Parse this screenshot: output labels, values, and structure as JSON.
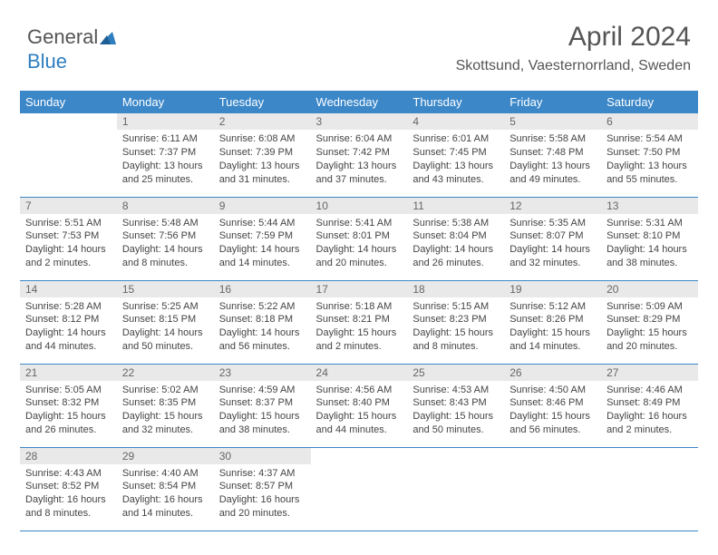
{
  "logo": {
    "part1": "General",
    "part2": "Blue"
  },
  "header": {
    "title": "April 2024",
    "location": "Skottsund, Vaesternorrland, Sweden"
  },
  "colors": {
    "header_bg": "#3b87c8",
    "header_text": "#ffffff",
    "daynum_bg": "#e9e9e9",
    "daynum_text": "#666666",
    "body_text": "#444444",
    "row_border": "#3b87c8",
    "page_bg": "#ffffff",
    "logo_gray": "#555555",
    "logo_blue": "#2f7fbf"
  },
  "typography": {
    "title_fontsize": 30,
    "subtitle_fontsize": 16,
    "dayheader_fontsize": 13,
    "daynum_fontsize": 12,
    "cell_fontsize": 11,
    "font_family": "Arial"
  },
  "day_headers": [
    "Sunday",
    "Monday",
    "Tuesday",
    "Wednesday",
    "Thursday",
    "Friday",
    "Saturday"
  ],
  "weeks": [
    [
      null,
      {
        "n": "1",
        "sunrise": "Sunrise: 6:11 AM",
        "sunset": "Sunset: 7:37 PM",
        "daylight": "Daylight: 13 hours and 25 minutes."
      },
      {
        "n": "2",
        "sunrise": "Sunrise: 6:08 AM",
        "sunset": "Sunset: 7:39 PM",
        "daylight": "Daylight: 13 hours and 31 minutes."
      },
      {
        "n": "3",
        "sunrise": "Sunrise: 6:04 AM",
        "sunset": "Sunset: 7:42 PM",
        "daylight": "Daylight: 13 hours and 37 minutes."
      },
      {
        "n": "4",
        "sunrise": "Sunrise: 6:01 AM",
        "sunset": "Sunset: 7:45 PM",
        "daylight": "Daylight: 13 hours and 43 minutes."
      },
      {
        "n": "5",
        "sunrise": "Sunrise: 5:58 AM",
        "sunset": "Sunset: 7:48 PM",
        "daylight": "Daylight: 13 hours and 49 minutes."
      },
      {
        "n": "6",
        "sunrise": "Sunrise: 5:54 AM",
        "sunset": "Sunset: 7:50 PM",
        "daylight": "Daylight: 13 hours and 55 minutes."
      }
    ],
    [
      {
        "n": "7",
        "sunrise": "Sunrise: 5:51 AM",
        "sunset": "Sunset: 7:53 PM",
        "daylight": "Daylight: 14 hours and 2 minutes."
      },
      {
        "n": "8",
        "sunrise": "Sunrise: 5:48 AM",
        "sunset": "Sunset: 7:56 PM",
        "daylight": "Daylight: 14 hours and 8 minutes."
      },
      {
        "n": "9",
        "sunrise": "Sunrise: 5:44 AM",
        "sunset": "Sunset: 7:59 PM",
        "daylight": "Daylight: 14 hours and 14 minutes."
      },
      {
        "n": "10",
        "sunrise": "Sunrise: 5:41 AM",
        "sunset": "Sunset: 8:01 PM",
        "daylight": "Daylight: 14 hours and 20 minutes."
      },
      {
        "n": "11",
        "sunrise": "Sunrise: 5:38 AM",
        "sunset": "Sunset: 8:04 PM",
        "daylight": "Daylight: 14 hours and 26 minutes."
      },
      {
        "n": "12",
        "sunrise": "Sunrise: 5:35 AM",
        "sunset": "Sunset: 8:07 PM",
        "daylight": "Daylight: 14 hours and 32 minutes."
      },
      {
        "n": "13",
        "sunrise": "Sunrise: 5:31 AM",
        "sunset": "Sunset: 8:10 PM",
        "daylight": "Daylight: 14 hours and 38 minutes."
      }
    ],
    [
      {
        "n": "14",
        "sunrise": "Sunrise: 5:28 AM",
        "sunset": "Sunset: 8:12 PM",
        "daylight": "Daylight: 14 hours and 44 minutes."
      },
      {
        "n": "15",
        "sunrise": "Sunrise: 5:25 AM",
        "sunset": "Sunset: 8:15 PM",
        "daylight": "Daylight: 14 hours and 50 minutes."
      },
      {
        "n": "16",
        "sunrise": "Sunrise: 5:22 AM",
        "sunset": "Sunset: 8:18 PM",
        "daylight": "Daylight: 14 hours and 56 minutes."
      },
      {
        "n": "17",
        "sunrise": "Sunrise: 5:18 AM",
        "sunset": "Sunset: 8:21 PM",
        "daylight": "Daylight: 15 hours and 2 minutes."
      },
      {
        "n": "18",
        "sunrise": "Sunrise: 5:15 AM",
        "sunset": "Sunset: 8:23 PM",
        "daylight": "Daylight: 15 hours and 8 minutes."
      },
      {
        "n": "19",
        "sunrise": "Sunrise: 5:12 AM",
        "sunset": "Sunset: 8:26 PM",
        "daylight": "Daylight: 15 hours and 14 minutes."
      },
      {
        "n": "20",
        "sunrise": "Sunrise: 5:09 AM",
        "sunset": "Sunset: 8:29 PM",
        "daylight": "Daylight: 15 hours and 20 minutes."
      }
    ],
    [
      {
        "n": "21",
        "sunrise": "Sunrise: 5:05 AM",
        "sunset": "Sunset: 8:32 PM",
        "daylight": "Daylight: 15 hours and 26 minutes."
      },
      {
        "n": "22",
        "sunrise": "Sunrise: 5:02 AM",
        "sunset": "Sunset: 8:35 PM",
        "daylight": "Daylight: 15 hours and 32 minutes."
      },
      {
        "n": "23",
        "sunrise": "Sunrise: 4:59 AM",
        "sunset": "Sunset: 8:37 PM",
        "daylight": "Daylight: 15 hours and 38 minutes."
      },
      {
        "n": "24",
        "sunrise": "Sunrise: 4:56 AM",
        "sunset": "Sunset: 8:40 PM",
        "daylight": "Daylight: 15 hours and 44 minutes."
      },
      {
        "n": "25",
        "sunrise": "Sunrise: 4:53 AM",
        "sunset": "Sunset: 8:43 PM",
        "daylight": "Daylight: 15 hours and 50 minutes."
      },
      {
        "n": "26",
        "sunrise": "Sunrise: 4:50 AM",
        "sunset": "Sunset: 8:46 PM",
        "daylight": "Daylight: 15 hours and 56 minutes."
      },
      {
        "n": "27",
        "sunrise": "Sunrise: 4:46 AM",
        "sunset": "Sunset: 8:49 PM",
        "daylight": "Daylight: 16 hours and 2 minutes."
      }
    ],
    [
      {
        "n": "28",
        "sunrise": "Sunrise: 4:43 AM",
        "sunset": "Sunset: 8:52 PM",
        "daylight": "Daylight: 16 hours and 8 minutes."
      },
      {
        "n": "29",
        "sunrise": "Sunrise: 4:40 AM",
        "sunset": "Sunset: 8:54 PM",
        "daylight": "Daylight: 16 hours and 14 minutes."
      },
      {
        "n": "30",
        "sunrise": "Sunrise: 4:37 AM",
        "sunset": "Sunset: 8:57 PM",
        "daylight": "Daylight: 16 hours and 20 minutes."
      },
      null,
      null,
      null,
      null
    ]
  ]
}
